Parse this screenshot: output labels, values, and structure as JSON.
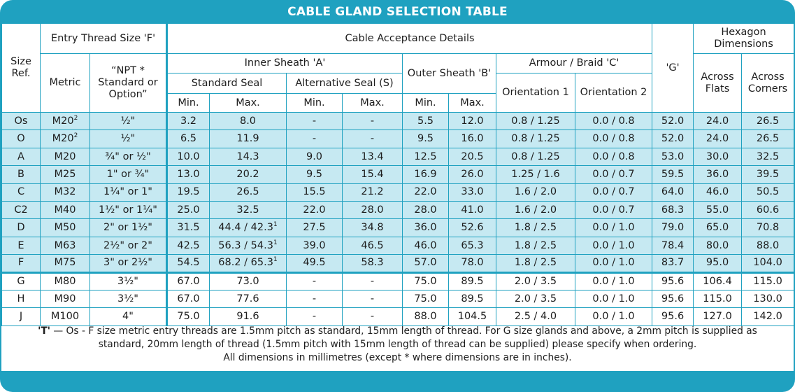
{
  "title": "CABLE GLAND SELECTION TABLE",
  "headers": {
    "size_ref": "Size Ref.",
    "entry_thread": "Entry Thread Size 'F'",
    "metric": "Metric",
    "npt": "“NPT * Standard or Option”",
    "cable_acceptance": "Cable Acceptance Details",
    "inner_sheath": "Inner Sheath 'A'",
    "standard_seal": "Standard Seal",
    "alternative_seal": "Alternative Seal (S)",
    "outer_sheath": "Outer Sheath 'B'",
    "armour": "Armour / Braid 'C'",
    "orientation1": "Orientation 1",
    "orientation2": "Orientation 2",
    "g": "'G'",
    "hexagon": "Hexagon Dimensions",
    "across_flats": "Across Flats",
    "across_corners": "Across Corners",
    "min": "Min.",
    "max": "Max."
  },
  "rows": [
    {
      "size": "Os",
      "metric": "M20",
      "metric_sup": "2",
      "npt": "½\"",
      "std_min": "3.2",
      "std_max": "8.0",
      "std_max_sup": "",
      "alt_min": "-",
      "alt_max": "-",
      "out_min": "5.5",
      "out_max": "12.0",
      "or1": "0.8 / 1.25",
      "or2": "0.0 / 0.8",
      "g": "52.0",
      "af": "24.0",
      "ac": "26.5"
    },
    {
      "size": "O",
      "metric": "M20",
      "metric_sup": "2",
      "npt": "½\"",
      "std_min": "6.5",
      "std_max": "11.9",
      "std_max_sup": "",
      "alt_min": "-",
      "alt_max": "-",
      "out_min": "9.5",
      "out_max": "16.0",
      "or1": "0.8 / 1.25",
      "or2": "0.0 / 0.8",
      "g": "52.0",
      "af": "24.0",
      "ac": "26.5"
    },
    {
      "size": "A",
      "metric": "M20",
      "metric_sup": "",
      "npt": "¾\" or ½\"",
      "std_min": "10.0",
      "std_max": "14.3",
      "std_max_sup": "",
      "alt_min": "9.0",
      "alt_max": "13.4",
      "out_min": "12.5",
      "out_max": "20.5",
      "or1": "0.8 / 1.25",
      "or2": "0.0 / 0.8",
      "g": "53.0",
      "af": "30.0",
      "ac": "32.5"
    },
    {
      "size": "B",
      "metric": "M25",
      "metric_sup": "",
      "npt": "1\" or ¾\"",
      "std_min": "13.0",
      "std_max": "20.2",
      "std_max_sup": "",
      "alt_min": "9.5",
      "alt_max": "15.4",
      "out_min": "16.9",
      "out_max": "26.0",
      "or1": "1.25 / 1.6",
      "or2": "0.0 / 0.7",
      "g": "59.5",
      "af": "36.0",
      "ac": "39.5"
    },
    {
      "size": "C",
      "metric": "M32",
      "metric_sup": "",
      "npt": "1¼\" or 1\"",
      "std_min": "19.5",
      "std_max": "26.5",
      "std_max_sup": "",
      "alt_min": "15.5",
      "alt_max": "21.2",
      "out_min": "22.0",
      "out_max": "33.0",
      "or1": "1.6 / 2.0",
      "or2": "0.0 / 0.7",
      "g": "64.0",
      "af": "46.0",
      "ac": "50.5"
    },
    {
      "size": "C2",
      "metric": "M40",
      "metric_sup": "",
      "npt": "1½\" or 1¼\"",
      "std_min": "25.0",
      "std_max": "32.5",
      "std_max_sup": "",
      "alt_min": "22.0",
      "alt_max": "28.0",
      "out_min": "28.0",
      "out_max": "41.0",
      "or1": "1.6 / 2.0",
      "or2": "0.0 / 0.7",
      "g": "68.3",
      "af": "55.0",
      "ac": "60.6"
    },
    {
      "size": "D",
      "metric": "M50",
      "metric_sup": "",
      "npt": "2\" or 1½\"",
      "std_min": "31.5",
      "std_max": "44.4 / 42.3",
      "std_max_sup": "1",
      "alt_min": "27.5",
      "alt_max": "34.8",
      "out_min": "36.0",
      "out_max": "52.6",
      "or1": "1.8 / 2.5",
      "or2": "0.0 / 1.0",
      "g": "79.0",
      "af": "65.0",
      "ac": "70.8"
    },
    {
      "size": "E",
      "metric": "M63",
      "metric_sup": "",
      "npt": "2½\" or 2\"",
      "std_min": "42.5",
      "std_max": "56.3 / 54.3",
      "std_max_sup": "1",
      "alt_min": "39.0",
      "alt_max": "46.5",
      "out_min": "46.0",
      "out_max": "65.3",
      "or1": "1.8 / 2.5",
      "or2": "0.0 / 1.0",
      "g": "78.4",
      "af": "80.0",
      "ac": "88.0"
    },
    {
      "size": "F",
      "metric": "M75",
      "metric_sup": "",
      "npt": "3\" or 2½\"",
      "std_min": "54.5",
      "std_max": "68.2 / 65.3",
      "std_max_sup": "1",
      "alt_min": "49.5",
      "alt_max": "58.3",
      "out_min": "57.0",
      "out_max": "78.0",
      "or1": "1.8 / 2.5",
      "or2": "0.0 / 1.0",
      "g": "83.7",
      "af": "95.0",
      "ac": "104.0"
    },
    {
      "size": "G",
      "metric": "M80",
      "metric_sup": "",
      "npt": "3½\"",
      "std_min": "67.0",
      "std_max": "73.0",
      "std_max_sup": "",
      "alt_min": "-",
      "alt_max": "-",
      "out_min": "75.0",
      "out_max": "89.5",
      "or1": "2.0 / 3.5",
      "or2": "0.0 / 1.0",
      "g": "95.6",
      "af": "106.4",
      "ac": "115.0"
    },
    {
      "size": "H",
      "metric": "M90",
      "metric_sup": "",
      "npt": "3½\"",
      "std_min": "67.0",
      "std_max": "77.6",
      "std_max_sup": "",
      "alt_min": "-",
      "alt_max": "-",
      "out_min": "75.0",
      "out_max": "89.5",
      "or1": "2.0 / 3.5",
      "or2": "0.0 / 1.0",
      "g": "95.6",
      "af": "115.0",
      "ac": "130.0"
    },
    {
      "size": "J",
      "metric": "M100",
      "metric_sup": "",
      "npt": "4\"",
      "std_min": "75.0",
      "std_max": "91.6",
      "std_max_sup": "",
      "alt_min": "-",
      "alt_max": "-",
      "out_min": "88.0",
      "out_max": "104.5",
      "or1": "2.5 / 4.0",
      "or2": "0.0 / 1.0",
      "g": "95.6",
      "af": "127.0",
      "ac": "142.0"
    }
  ],
  "notes": {
    "key": "'T'",
    "line1": " — Os - F size metric entry threads are 1.5mm pitch as standard, 15mm length of thread. For G size glands and above, a 2mm pitch is supplied as",
    "line2": "standard, 20mm length of thread (1.5mm pitch with 15mm length of thread can be supplied) please specify when ordering.",
    "line3": "All dimensions in millimetres (except * where dimensions are in inches)."
  },
  "colors": {
    "accent": "#1fa1c0",
    "row_shade": "#c6e9f2",
    "text": "#1d1d1d"
  }
}
